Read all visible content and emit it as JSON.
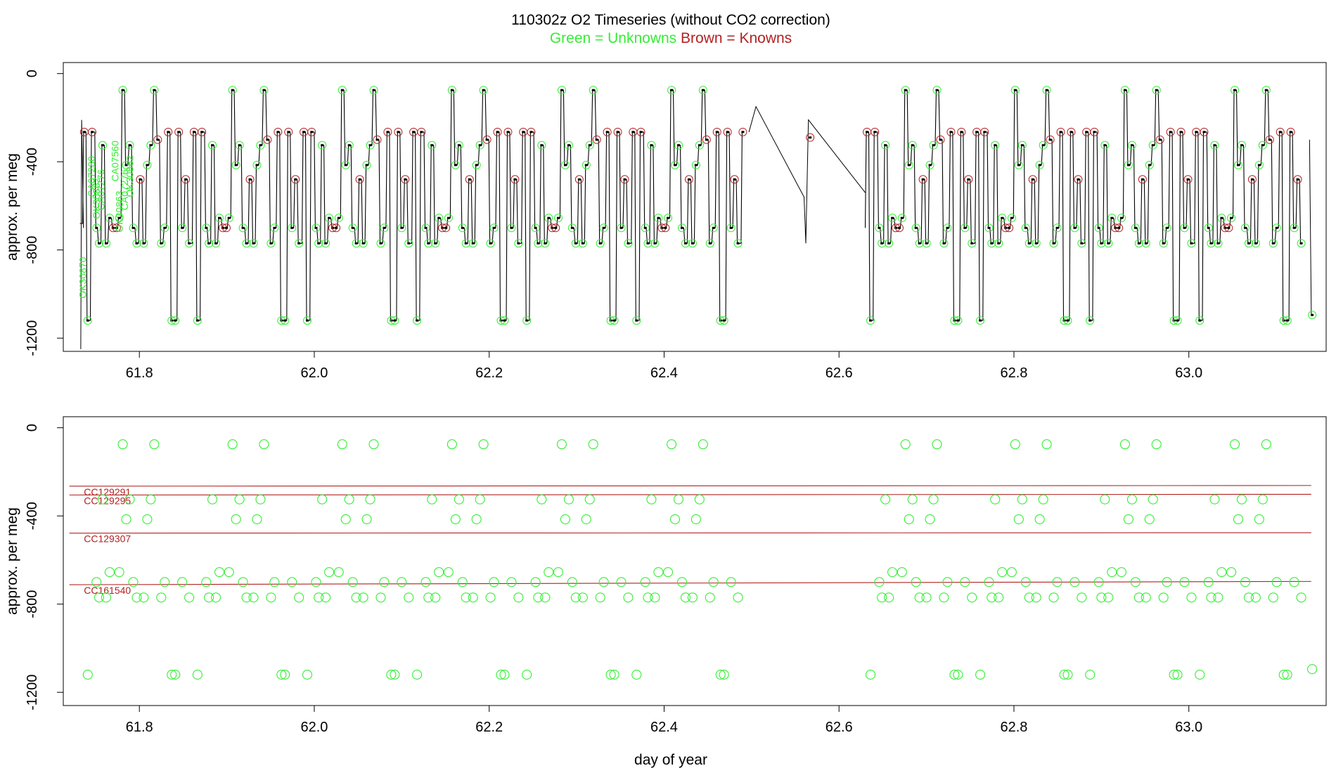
{
  "colors": {
    "unknown": "#33ee33",
    "known": "#b22222",
    "line": "#000000",
    "axis": "#000000"
  },
  "chart_data": [
    {
      "type": "line",
      "title": "110302z   O2 Timeseries (without CO2 correction)",
      "subtitle_green": "Green = Unknowns",
      "subtitle_brown": "Brown = Knowns",
      "xlabel": "",
      "ylabel": "approx. per meg",
      "xlim": [
        61.713,
        63.157
      ],
      "ylim": [
        -1260,
        50
      ],
      "xticks": [
        61.8,
        62.0,
        62.2,
        62.4,
        62.6,
        62.8,
        63.0
      ],
      "xtick_labels": [
        "61.8",
        "62.0",
        "62.2",
        "62.4",
        "62.6",
        "62.8",
        "63.0"
      ],
      "yticks": [
        0,
        -400,
        -800,
        -1200
      ],
      "ytick_labels": [
        "0",
        "-400",
        "-800",
        "-1200"
      ],
      "cycle_start": 61.735,
      "cycle_period": 0.1255,
      "cycle_count": 11,
      "gap_after_cycle": 6,
      "gap_resume": 62.63,
      "gap_lines": [
        [
          62.505,
          -150
        ],
        [
          62.56,
          -560
        ],
        [
          62.562,
          -770
        ],
        [
          62.565,
          -210
        ],
        [
          62.63,
          -540
        ]
      ],
      "cycle_pattern": [
        {
          "dt": 0.002,
          "y": -265,
          "kind": "known"
        },
        {
          "dt": 0.006,
          "y": -1120,
          "kind": "unknown"
        },
        {
          "dt": 0.011,
          "y": -265,
          "kind": "known"
        },
        {
          "dt": 0.016,
          "y": -700,
          "kind": "unknown"
        },
        {
          "dt": 0.019,
          "y": -770,
          "kind": "unknown"
        },
        {
          "dt": 0.023,
          "y": -325,
          "kind": "unknown"
        },
        {
          "dt": 0.027,
          "y": -770,
          "kind": "unknown"
        },
        {
          "dt": 0.031,
          "y": -655,
          "kind": "unknown"
        },
        {
          "dt": 0.035,
          "y": -700,
          "kind": "known"
        },
        {
          "dt": 0.039,
          "y": -700,
          "kind": "known"
        },
        {
          "dt": 0.042,
          "y": -655,
          "kind": "unknown"
        },
        {
          "dt": 0.046,
          "y": -75,
          "kind": "unknown"
        },
        {
          "dt": 0.05,
          "y": -415,
          "kind": "unknown"
        },
        {
          "dt": 0.054,
          "y": -325,
          "kind": "unknown"
        },
        {
          "dt": 0.058,
          "y": -700,
          "kind": "unknown"
        },
        {
          "dt": 0.062,
          "y": -770,
          "kind": "unknown"
        },
        {
          "dt": 0.066,
          "y": -480,
          "kind": "known"
        },
        {
          "dt": 0.07,
          "y": -770,
          "kind": "unknown"
        },
        {
          "dt": 0.074,
          "y": -415,
          "kind": "unknown"
        },
        {
          "dt": 0.078,
          "y": -325,
          "kind": "unknown"
        },
        {
          "dt": 0.082,
          "y": -75,
          "kind": "unknown"
        },
        {
          "dt": 0.086,
          "y": -300,
          "kind": "known"
        },
        {
          "dt": 0.09,
          "y": -770,
          "kind": "unknown"
        },
        {
          "dt": 0.094,
          "y": -700,
          "kind": "unknown"
        },
        {
          "dt": 0.098,
          "y": -265,
          "kind": "known"
        },
        {
          "dt": 0.102,
          "y": -1120,
          "kind": "unknown"
        },
        {
          "dt": 0.106,
          "y": -1120,
          "kind": "unknown"
        },
        {
          "dt": 0.11,
          "y": -265,
          "kind": "known"
        },
        {
          "dt": 0.114,
          "y": -700,
          "kind": "unknown"
        },
        {
          "dt": 0.118,
          "y": -480,
          "kind": "known"
        },
        {
          "dt": 0.122,
          "y": -770,
          "kind": "unknown"
        }
      ],
      "extra_points": [
        {
          "x": 62.567,
          "y": -290,
          "kind": "known"
        },
        {
          "x": 63.141,
          "y": -1095,
          "kind": "unknown"
        }
      ],
      "annotations": [
        "OK30870",
        "CA07280",
        "OK30862",
        "CA07276",
        "CA07560",
        "OK30863",
        "CA07276",
        "OK30862"
      ]
    },
    {
      "type": "scatter",
      "xlabel": "day of year",
      "ylabel": "approx. per meg",
      "xlim": [
        61.713,
        63.157
      ],
      "ylim": [
        -1260,
        50
      ],
      "xticks": [
        61.8,
        62.0,
        62.2,
        62.4,
        62.6,
        62.8,
        63.0
      ],
      "xtick_labels": [
        "61.8",
        "62.0",
        "62.2",
        "62.4",
        "62.6",
        "62.8",
        "63.0"
      ],
      "yticks": [
        0,
        -400,
        -800,
        -1200
      ],
      "ytick_labels": [
        "0",
        "-400",
        "-800",
        "-1200"
      ],
      "reference_lines": [
        {
          "name": "CC129291",
          "x": [
            61.72,
            63.14
          ],
          "y": [
            -265,
            -262
          ]
        },
        {
          "name": "CC129295",
          "x": [
            61.72,
            63.14
          ],
          "y": [
            -305,
            -302
          ]
        },
        {
          "name": "CC129307",
          "x": [
            61.72,
            63.14
          ],
          "y": [
            -478,
            -476
          ]
        },
        {
          "name": "CC161540",
          "x": [
            61.72,
            63.14
          ],
          "y": [
            -712,
            -697
          ]
        }
      ]
    }
  ]
}
